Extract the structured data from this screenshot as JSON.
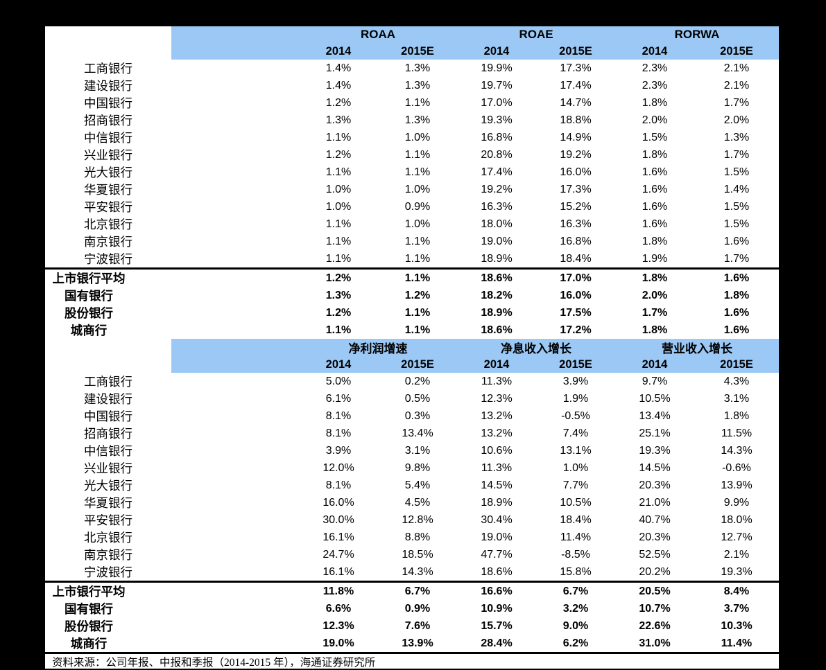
{
  "colors": {
    "page_background": "#000000",
    "sheet_background": "#ffffff",
    "header_blue": "#9BC8F5",
    "text": "#000000"
  },
  "table1": {
    "column_groups": [
      "ROAA",
      "ROAE",
      "RORWA"
    ],
    "year_headers": [
      "2014",
      "2015E",
      "2014",
      "2015E",
      "2014",
      "2015E"
    ],
    "rows": [
      {
        "label": "工商银行",
        "values": [
          "1.4%",
          "1.3%",
          "19.9%",
          "17.3%",
          "2.3%",
          "2.1%"
        ]
      },
      {
        "label": "建设银行",
        "values": [
          "1.4%",
          "1.3%",
          "19.7%",
          "17.4%",
          "2.3%",
          "2.1%"
        ]
      },
      {
        "label": "中国银行",
        "values": [
          "1.2%",
          "1.1%",
          "17.0%",
          "14.7%",
          "1.8%",
          "1.7%"
        ]
      },
      {
        "label": "招商银行",
        "values": [
          "1.3%",
          "1.3%",
          "19.3%",
          "18.8%",
          "2.0%",
          "2.0%"
        ]
      },
      {
        "label": "中信银行",
        "values": [
          "1.1%",
          "1.0%",
          "16.8%",
          "14.9%",
          "1.5%",
          "1.3%"
        ]
      },
      {
        "label": "兴业银行",
        "values": [
          "1.2%",
          "1.1%",
          "20.8%",
          "19.2%",
          "1.8%",
          "1.7%"
        ]
      },
      {
        "label": "光大银行",
        "values": [
          "1.1%",
          "1.1%",
          "17.4%",
          "16.0%",
          "1.6%",
          "1.5%"
        ]
      },
      {
        "label": "华夏银行",
        "values": [
          "1.0%",
          "1.0%",
          "19.2%",
          "17.3%",
          "1.6%",
          "1.4%"
        ]
      },
      {
        "label": "平安银行",
        "values": [
          "1.0%",
          "0.9%",
          "16.3%",
          "15.2%",
          "1.6%",
          "1.5%"
        ]
      },
      {
        "label": "北京银行",
        "values": [
          "1.1%",
          "1.0%",
          "18.0%",
          "16.3%",
          "1.6%",
          "1.5%"
        ]
      },
      {
        "label": "南京银行",
        "values": [
          "1.1%",
          "1.1%",
          "19.0%",
          "16.8%",
          "1.8%",
          "1.6%"
        ]
      },
      {
        "label": "宁波银行",
        "values": [
          "1.1%",
          "1.1%",
          "18.9%",
          "18.4%",
          "1.9%",
          "1.7%"
        ]
      }
    ],
    "summary_rows": [
      {
        "label": "上市银行平均",
        "values": [
          "1.2%",
          "1.1%",
          "18.6%",
          "17.0%",
          "1.8%",
          "1.6%"
        ]
      },
      {
        "label": "国有银行",
        "values": [
          "1.3%",
          "1.2%",
          "18.2%",
          "16.0%",
          "2.0%",
          "1.8%"
        ]
      },
      {
        "label": "股份银行",
        "values": [
          "1.2%",
          "1.1%",
          "18.9%",
          "17.5%",
          "1.7%",
          "1.6%"
        ]
      },
      {
        "label": "城商行",
        "values": [
          "1.1%",
          "1.1%",
          "18.6%",
          "17.2%",
          "1.8%",
          "1.6%"
        ]
      }
    ]
  },
  "table2": {
    "column_groups": [
      "净利润增速",
      "净息收入增长",
      "营业收入增长"
    ],
    "year_headers": [
      "2014",
      "2015E",
      "2014",
      "2015E",
      "2014",
      "2015E"
    ],
    "rows": [
      {
        "label": "工商银行",
        "values": [
          "5.0%",
          "0.2%",
          "11.3%",
          "3.9%",
          "9.7%",
          "4.3%"
        ]
      },
      {
        "label": "建设银行",
        "values": [
          "6.1%",
          "0.5%",
          "12.3%",
          "1.9%",
          "10.5%",
          "3.1%"
        ]
      },
      {
        "label": "中国银行",
        "values": [
          "8.1%",
          "0.3%",
          "13.2%",
          "-0.5%",
          "13.4%",
          "1.8%"
        ]
      },
      {
        "label": "招商银行",
        "values": [
          "8.1%",
          "13.4%",
          "13.2%",
          "7.4%",
          "25.1%",
          "11.5%"
        ]
      },
      {
        "label": "中信银行",
        "values": [
          "3.9%",
          "3.1%",
          "10.6%",
          "13.1%",
          "19.3%",
          "14.3%"
        ]
      },
      {
        "label": "兴业银行",
        "values": [
          "12.0%",
          "9.8%",
          "11.3%",
          "1.0%",
          "14.5%",
          "-0.6%"
        ]
      },
      {
        "label": "光大银行",
        "values": [
          "8.1%",
          "5.4%",
          "14.5%",
          "7.7%",
          "20.3%",
          "13.9%"
        ]
      },
      {
        "label": "华夏银行",
        "values": [
          "16.0%",
          "4.5%",
          "18.9%",
          "10.5%",
          "21.0%",
          "9.9%"
        ]
      },
      {
        "label": "平安银行",
        "values": [
          "30.0%",
          "12.8%",
          "30.4%",
          "18.4%",
          "40.7%",
          "18.0%"
        ]
      },
      {
        "label": "北京银行",
        "values": [
          "16.1%",
          "8.8%",
          "19.0%",
          "11.4%",
          "20.3%",
          "12.7%"
        ]
      },
      {
        "label": "南京银行",
        "values": [
          "24.7%",
          "18.5%",
          "47.7%",
          "-8.5%",
          "52.5%",
          "2.1%"
        ]
      },
      {
        "label": "宁波银行",
        "values": [
          "16.1%",
          "14.3%",
          "18.6%",
          "15.8%",
          "20.2%",
          "19.3%"
        ]
      }
    ],
    "summary_rows": [
      {
        "label": "上市银行平均",
        "values": [
          "11.8%",
          "6.7%",
          "16.6%",
          "6.7%",
          "20.5%",
          "8.4%"
        ]
      },
      {
        "label": "国有银行",
        "values": [
          "6.6%",
          "0.9%",
          "10.9%",
          "3.2%",
          "10.7%",
          "3.7%"
        ]
      },
      {
        "label": "股份银行",
        "values": [
          "12.3%",
          "7.6%",
          "15.7%",
          "9.0%",
          "22.6%",
          "10.3%"
        ]
      },
      {
        "label": "城商行",
        "values": [
          "19.0%",
          "13.9%",
          "28.4%",
          "6.2%",
          "31.0%",
          "11.4%"
        ]
      }
    ]
  },
  "footer": {
    "source": "资料来源：公司年报、中报和季报（2014-2015 年），海通证券研究所"
  }
}
